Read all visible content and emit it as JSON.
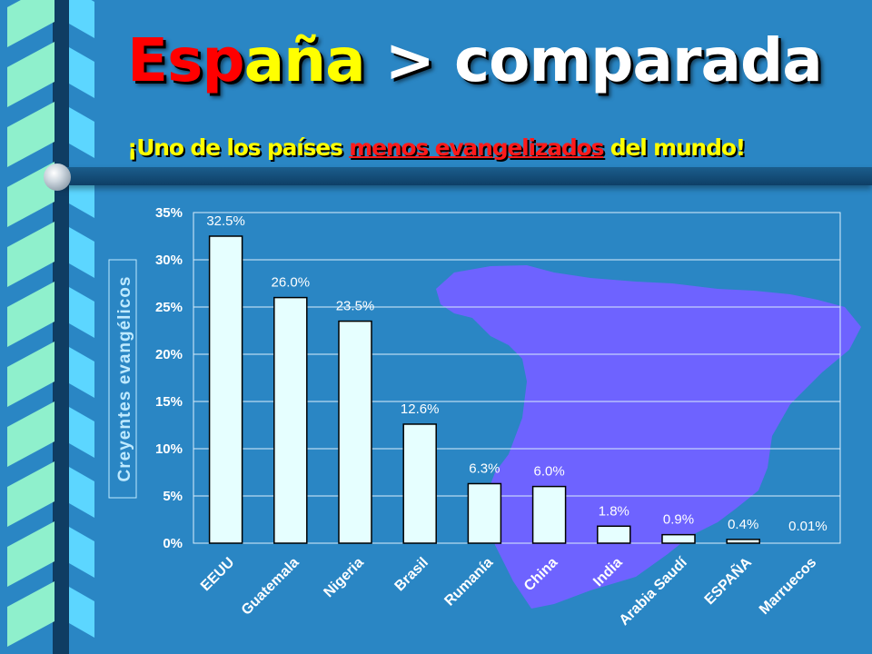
{
  "title": {
    "part1": "Esp",
    "part2": "aña",
    "part3": " > comparada"
  },
  "subtitle": {
    "before": "¡Uno de los países ",
    "highlight": "menos evangelizados",
    "after": " del mundo!"
  },
  "colors": {
    "background": "#2a86c4",
    "bar_fill": "#e6ffff",
    "map_fill": "#6e63ff",
    "title_red": "#ff0000",
    "title_yellow": "#ffff00"
  },
  "chart_data": {
    "type": "bar",
    "title": "",
    "xlabel": "",
    "ylabel": "Creyentes evangélicos",
    "categories": [
      "EEUU",
      "Guatemala",
      "Nigeria",
      "Brasil",
      "Rumanía",
      "China",
      "India",
      "Arabia Saudí",
      "ESPAÑA",
      "Marruecos"
    ],
    "values": [
      32.5,
      26.0,
      23.5,
      12.6,
      6.3,
      6.0,
      1.8,
      0.9,
      0.4,
      0.01
    ],
    "data_labels": [
      "32.5%",
      "26.0%",
      "23.5%",
      "12.6%",
      "6.3%",
      "6.0%",
      "1.8%",
      "0.9%",
      "0.4%",
      "0.01%"
    ],
    "ylim": [
      0,
      35
    ],
    "yticks": [
      "0%",
      "5%",
      "10%",
      "15%",
      "20%",
      "25%",
      "30%",
      "35%"
    ],
    "grid": true,
    "legend": "none"
  }
}
